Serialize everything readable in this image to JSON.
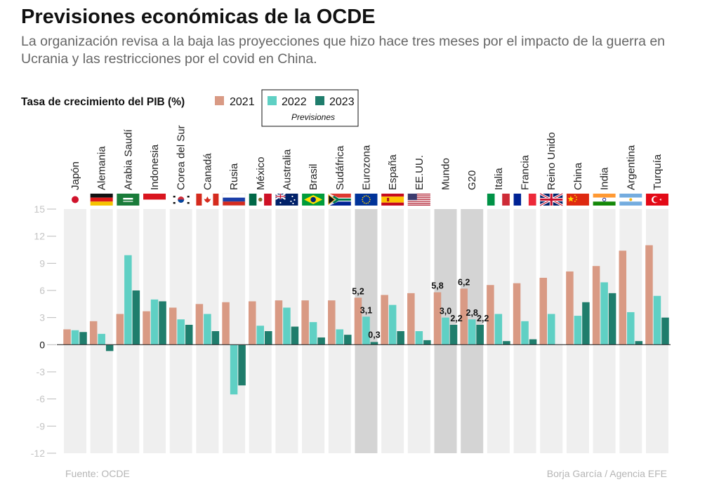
{
  "header": {
    "title": "Previsiones económicas de la OCDE",
    "subtitle": "La organización revisa a la baja las proyecciones que hizo hace tres meses por el impacto de la guerra en Ucrania y las restricciones por el covid en China."
  },
  "footer": {
    "source": "Fuente: OCDE",
    "credit": "Borja García / Agencia EFE"
  },
  "colors": {
    "2021": "#d99a84",
    "2022": "#5fd0c4",
    "2023": "#1f7d6c",
    "column_bg": "#efefef",
    "highlight_bg": "#d4d4d4"
  },
  "chart_data": {
    "type": "bar",
    "title": "Tasa de crecimiento del PIB (%)",
    "legend_note": "Previsiones",
    "categories": [
      "Japón",
      "Alemania",
      "Arabia Saudí",
      "Indonesia",
      "Corea del Sur",
      "Canadá",
      "Rusia",
      "México",
      "Australia",
      "Brasil",
      "Sudáfrica",
      "Eurozona",
      "España",
      "EE.UU.",
      "Mundo",
      "G20",
      "Italia",
      "Francia",
      "Reino Unido",
      "China",
      "India",
      "Argentina",
      "Turquía"
    ],
    "flags": [
      "jp",
      "de",
      "sa",
      "id",
      "kr",
      "ca",
      "ru",
      "mx",
      "au",
      "br",
      "za",
      "eu",
      "es",
      "us",
      "",
      "",
      "it",
      "fr",
      "gb",
      "cn",
      "in",
      "ar",
      "tr"
    ],
    "highlighted": [
      "Eurozona",
      "Mundo",
      "G20"
    ],
    "series": [
      {
        "name": "2021",
        "values": [
          1.7,
          2.6,
          3.4,
          3.7,
          4.1,
          4.5,
          4.7,
          4.8,
          4.9,
          4.9,
          4.9,
          5.2,
          5.5,
          5.7,
          5.8,
          6.2,
          6.6,
          6.8,
          7.4,
          8.1,
          8.7,
          10.4,
          11.0
        ]
      },
      {
        "name": "2022",
        "values": [
          1.6,
          1.2,
          9.9,
          5.0,
          2.8,
          3.4,
          -5.5,
          2.1,
          4.1,
          2.5,
          1.7,
          3.1,
          4.4,
          1.5,
          3.0,
          2.8,
          3.4,
          2.6,
          3.4,
          3.2,
          6.9,
          3.6,
          5.4
        ]
      },
      {
        "name": "2023",
        "values": [
          1.4,
          -0.7,
          6.0,
          4.8,
          2.2,
          1.5,
          -4.5,
          1.5,
          2.0,
          0.8,
          1.1,
          0.3,
          1.5,
          0.5,
          2.2,
          2.2,
          0.4,
          0.6,
          0.0,
          4.7,
          5.7,
          0.4,
          3.0
        ]
      }
    ],
    "data_labels": [
      {
        "category": "Eurozona",
        "values": [
          "5,2",
          "3,1",
          "0,3"
        ]
      },
      {
        "category": "Mundo",
        "values": [
          "5,8",
          "3,0",
          "2,2"
        ]
      },
      {
        "category": "G20",
        "values": [
          "6,2",
          "2,8",
          "2,2"
        ]
      }
    ],
    "ylim": [
      -12,
      15
    ],
    "yticks": [
      "15",
      "12",
      "9",
      "6",
      "3",
      "0",
      "-3",
      "-6",
      "-9",
      "-12"
    ],
    "grid": false,
    "legend_position": "top"
  }
}
